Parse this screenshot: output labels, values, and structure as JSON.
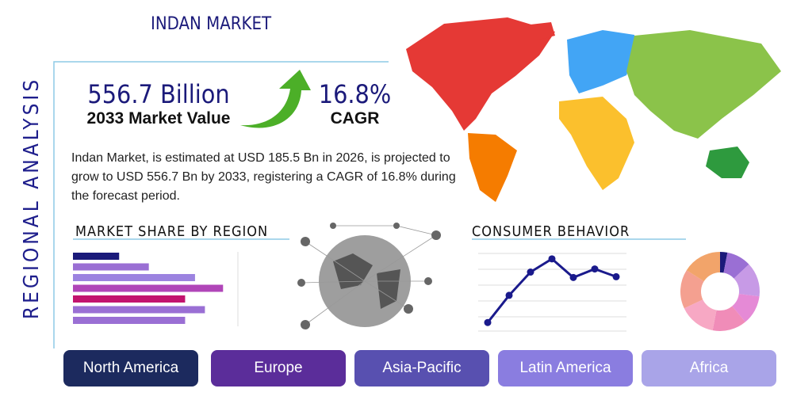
{
  "header": {
    "title": "INDAN MARKET",
    "side_title": "REGIONAL ANALYSIS"
  },
  "stats": [
    {
      "value": "556.7 Billion",
      "label": "2033 Market Value"
    },
    {
      "value": "16.8%",
      "label": "CAGR"
    }
  ],
  "description": "Indan Market, is estimated at USD 185.5 Bn in 2026, is projected to grow to USD 556.7 Bn by 2033, registering a CAGR of 16.8% during the forecast period.",
  "market_share": {
    "title": "MARKET SHARE BY REGION",
    "values": [
      28,
      46,
      74,
      91,
      68,
      80,
      68
    ],
    "colors": [
      "#1b1a7a",
      "#9a6fd4",
      "#9c83e0",
      "#b045b8",
      "#c2136e",
      "#9a6fd4",
      "#9a6fd4"
    ]
  },
  "consumer_behavior": {
    "title": "CONSUMER BEHAVIOR",
    "values": [
      11,
      46,
      76,
      93,
      69,
      80,
      70
    ],
    "color": "#1a1a8c"
  },
  "donut": {
    "values": [
      3,
      10,
      14,
      12,
      14,
      15,
      16,
      16
    ],
    "colors": [
      "#1b1a7a",
      "#9a6fd4",
      "#c79ae6",
      "#e58ad6",
      "#f08cb8",
      "#f7a8c4",
      "#f4a090",
      "#f2a46a"
    ]
  },
  "regions": [
    "North America",
    "Europe",
    "Asia-Pacific",
    "Latin America",
    "Africa"
  ]
}
